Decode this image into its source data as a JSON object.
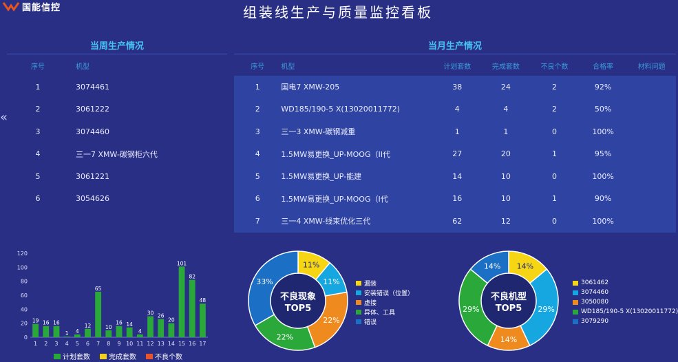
{
  "brand": {
    "name": "国能信控",
    "color": "#e8541f"
  },
  "title": "组装线生产与质量监控看板",
  "week": {
    "title": "当周生产情况",
    "headers": [
      "序号",
      "机型"
    ],
    "rows": [
      [
        "1",
        "3074461"
      ],
      [
        "2",
        "3061222"
      ],
      [
        "3",
        "3074460"
      ],
      [
        "4",
        "三一7 XMW-碳钢柜六代"
      ],
      [
        "5",
        "3061221"
      ],
      [
        "6",
        "3054626"
      ]
    ]
  },
  "month": {
    "title": "当月生产情况",
    "headers": [
      "序号",
      "机型",
      "计划套数",
      "完成套数",
      "不良个数",
      "合格率",
      "材料问题"
    ],
    "rows": [
      [
        "1",
        "国电7 XMW-205",
        "38",
        "24",
        "2",
        "92%",
        ""
      ],
      [
        "2",
        "WD185/190-5 X(13020011772)",
        "4",
        "4",
        "2",
        "50%",
        ""
      ],
      [
        "3",
        "三一3 XMW-碳钢减重",
        "1",
        "1",
        "0",
        "100%",
        ""
      ],
      [
        "4",
        "1.5MW易更换_UP-MOOG（II代",
        "27",
        "20",
        "1",
        "95%",
        ""
      ],
      [
        "5",
        "1.5MW易更换_UP-能建",
        "14",
        "10",
        "0",
        "100%",
        ""
      ],
      [
        "6",
        "1.5MW易更换_UP-MOOG（I代",
        "16",
        "10",
        "1",
        "90%",
        ""
      ],
      [
        "7",
        "三一4 XMW-线束优化三代",
        "62",
        "12",
        "0",
        "100%",
        ""
      ]
    ]
  },
  "chevron": "«",
  "chart_data": [
    {
      "type": "bar",
      "categories": [
        "1",
        "2",
        "3",
        "4",
        "5",
        "6",
        "7",
        "8",
        "9",
        "10",
        "11",
        "12",
        "13",
        "14",
        "15",
        "16",
        "17"
      ],
      "series": [
        {
          "name": "计划套数",
          "color": "#2aa93a",
          "values": [
            19,
            16,
            16,
            1,
            4,
            12,
            65,
            10,
            16,
            14,
            4,
            30,
            26,
            20,
            101,
            82,
            48
          ]
        },
        {
          "name": "完成套数",
          "color": "#f2d21a",
          "values": [
            0,
            0,
            0,
            0,
            0,
            0,
            0,
            0,
            0,
            0,
            0,
            0,
            0,
            0,
            0,
            0,
            0
          ]
        },
        {
          "name": "不良个数",
          "color": "#e8542b",
          "values": [
            0,
            0,
            0,
            0,
            0,
            0,
            0,
            0,
            0,
            0,
            0,
            0,
            0,
            0,
            0,
            0,
            0
          ]
        }
      ],
      "value_labels": [
        "19",
        "16",
        "16",
        "1",
        "4",
        "12",
        "65",
        "10",
        "16",
        "14",
        "4",
        "30",
        "26",
        "20",
        "101",
        "82",
        "48"
      ],
      "yticks": [
        "0",
        "20",
        "40",
        "60",
        "80",
        "100",
        "120"
      ],
      "ylim": [
        0,
        120
      ]
    },
    {
      "type": "pie",
      "title": "不良现象 TOP5",
      "title_line1": "不良现象",
      "title_line2": "TOP5",
      "labels": [
        "漏装",
        "安装错误（位置）",
        "虚接",
        "异体、工具",
        "错误"
      ],
      "values": [
        11,
        11,
        22,
        22,
        33
      ],
      "value_labels": [
        "11%",
        "11%",
        "22%",
        "22%",
        "33%"
      ],
      "colors": [
        "#f5d514",
        "#16a7e0",
        "#ef8a1e",
        "#2aa93a",
        "#1b6fc4"
      ]
    },
    {
      "type": "pie",
      "title": "不良机型 TOP5",
      "title_line1": "不良机型",
      "title_line2": "TOP5",
      "labels": [
        "3061462",
        "3074460",
        "3050080",
        "WD185/190-5 X(13020011772)",
        "3079290"
      ],
      "values": [
        14,
        29,
        14,
        29,
        14
      ],
      "value_labels": [
        "14%",
        "29%",
        "14%",
        "29%",
        "14%"
      ],
      "colors": [
        "#f5d514",
        "#16a7e0",
        "#ef8a1e",
        "#2aa93a",
        "#1b6fc4"
      ]
    }
  ]
}
